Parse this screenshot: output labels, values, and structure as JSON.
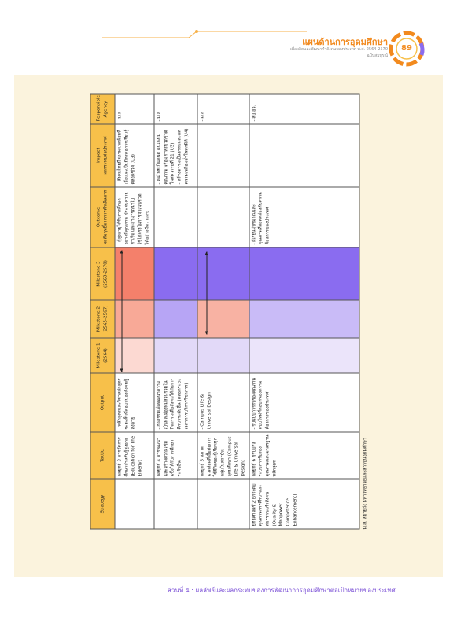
{
  "header": {
    "title": "แผนด้านการอุดมศึกษา",
    "subtitle": "เพื่อผลิตและพัฒนากำลังคนของประเทศ พ.ศ. 2564-2570",
    "edition": "ฉบับสมบูรณ์",
    "page_number": "89"
  },
  "table": {
    "columns": [
      "Strategy",
      "Tactic",
      "Output",
      "Milestone 1\n(2564)",
      "Milestone 2\n(2565-2567)",
      "Milestone 3\n(2568-2570)",
      "Outcome\nผลสัมฤทธิ์จากการดำเนินการ",
      "Impact\nผลกระทบต่อประเทศ",
      "Responsible\nAgency"
    ],
    "rows": [
      {
        "cells": [
          null,
          "กลยุทธ์ 3 การจัดการศึกษาสำหรับผู้สูงอายุ (Education for The Elderly)",
          "- หลักสูตรและวิชาหลักสูตรระยะสั้นที่ตอบสนองสังคมผู้สูงอายุ",
          null,
          null,
          null,
          "- ผู้สูงอายุได้รับการศึกษาอย่างมีคุณภาพ ประสบความสำเร็จ และสามารถนำไปใช้ได้จริงในการดำเนินชีวิตได้อย่างมีความสุข",
          "- สังคมไทยมีสภาพแวดล้อมที่เอื้อและเป็นมิตรต่อการเรียนรู้ตลอดชีวิต (U3)",
          "- ม.ส"
        ],
        "fills": [
          "#fcd9d2",
          "#f8a997",
          "#f4806b"
        ]
      },
      {
        "cells": [
          null,
          "กลยุทธ์ 4 การพัฒนาและสร้างความเข้มแข็งให้กับการศึกษาระดับอื่น",
          "- กิจกรรมเพื่อพัฒนาความเป็นพลเมืองที่มีส่วนร่วมในกิจกรรมเพื่อสังคมให้กับการศึกษาระดับอื่น (ตลอดระยะเวลาการบริการวิชาการ)",
          null,
          null,
          null,
          null,
          "- คนไทยเป็นคนดี คนเก่ง มีคุณภาพ พร้อมสำหรับวิถีชีวิตในศตวรรษที่ 21 (U3)\n- สร้างความเป็นธรรมและลดความเหลื่อมล้ำในทุกมิติ (U4)",
          "- ม.ส"
        ],
        "fills": [
          "#e2d9f8",
          "#b7a5f5",
          "#8a6cf0"
        ]
      },
      {
        "cells": [
          null,
          "กลยุทธ์ 5 สภาพแวดล้อมที่เอื้อต่อการใช้ชีวิตของผู้เรียนทุกกลุ่มในสถาบันอุดมศึกษา (Campus Life & Universal Design)",
          "- Campus Life & Universal Design",
          null,
          null,
          null,
          null,
          null,
          "- ม.ส"
        ],
        "fills": [
          "#e2d9f8",
          "#f8b2a3",
          "#8a6cf0"
        ]
      },
      {
        "cells": [
          "ยุทธศาสตร์ 2 ยกระดับคุณภาพการศึกษาและสมรรถนะกำลังคน (Quality & Manpower Competence Enhancement)",
          "กลยุทธ์ 6 ปรับปรุงระบบการรับรองคุณภาพและมาตรฐานหลักสูตร",
          "- รูปแบบการรับรองคุณภาพแบบใหม่ที่ตอบสนองความต้องการของประเทศ",
          null,
          null,
          null,
          "- ผู้เรียนมีปริมาณและคุณภาพที่สอดคล้องกับความต้องการของประเทศ",
          null,
          "- สป.อว."
        ],
        "fills": [
          "#ebe4fa",
          "#c9bbf7",
          "#8a6cf0"
        ]
      }
    ],
    "note": "ม.ส. หมายถึง มหาวิทยาลัยและสถาบันอุดมศึกษา"
  },
  "footer": "ส่วนที่ 4 : ผลลัพธ์และผลกระทบของการพัฒนาการอุดมศึกษาต่อเป้าหมายของประเทศ"
}
